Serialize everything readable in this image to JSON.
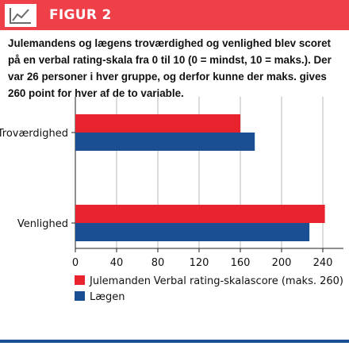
{
  "header": {
    "title": "FIGUR 2",
    "icon": "line-chart-icon",
    "color": "#ef3f49"
  },
  "description": "Julemandens og lægens troværdighed og venlighed blev scoret på en verbal rating-skala fra 0 til 10 (0 = mindst, 10 = maks.). Der var 26 personer i hver gruppe, og derfor kunne der maks. gives 260 point for hver af de to variable.",
  "colors": {
    "julemanden": "#e8232e",
    "laegen": "#1a4f94",
    "grid": "#b9b9b9"
  },
  "chart_data": {
    "type": "bar",
    "orientation": "horizontal",
    "categories": [
      "Troværdighed",
      "Venlighed"
    ],
    "series": [
      {
        "name": "Julemanden",
        "values": [
          160,
          242
        ]
      },
      {
        "name": "Lægen",
        "values": [
          174,
          227
        ]
      }
    ],
    "xlabel": "Verbal rating-skalascore (maks. 260)",
    "xlim": [
      0,
      260
    ],
    "xticks": [
      0,
      40,
      80,
      120,
      160,
      200,
      240
    ],
    "grid": true,
    "legend": "bottom-left"
  }
}
